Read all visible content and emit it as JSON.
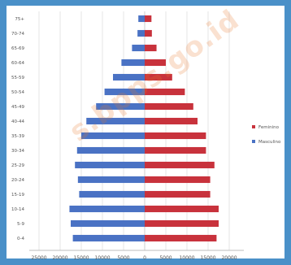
{
  "chart_data": {
    "type": "bar",
    "orientation": "horizontal-population-pyramid",
    "categories": [
      "0-4",
      "5-9",
      "10-14",
      "15-19",
      "20-24",
      "25-29",
      "30-34",
      "35-39",
      "40-44",
      "45-49",
      "50-54",
      "55-59",
      "60-64",
      "65-69",
      "70-74",
      "75+"
    ],
    "series": [
      {
        "name": "Masculino",
        "color": "#4a72c4",
        "side": "left",
        "values": [
          17000,
          17500,
          17800,
          15500,
          15800,
          16500,
          16000,
          15000,
          13800,
          11500,
          9500,
          7500,
          5500,
          3000,
          1700,
          1500
        ]
      },
      {
        "name": "Feminino",
        "color": "#c8323c",
        "side": "right",
        "values": [
          17000,
          17500,
          17500,
          15500,
          15500,
          16500,
          14500,
          14500,
          12500,
          11500,
          9500,
          6500,
          5000,
          2800,
          1700,
          1600
        ]
      }
    ],
    "xlim": [
      -25000,
      25000
    ],
    "x_ticks": [
      "25000",
      "20000",
      "15000",
      "10000",
      "5000",
      "0",
      "5000",
      "10000",
      "15000",
      "20000"
    ],
    "x_tick_values": [
      -25000,
      -20000,
      -15000,
      -10000,
      -5000,
      0,
      5000,
      10000,
      15000,
      20000
    ],
    "grid": true,
    "legend_position": "right"
  },
  "legend": {
    "items": [
      {
        "label": "Feminino",
        "color": "#c8323c"
      },
      {
        "label": "Masculino",
        "color": "#4a72c4"
      }
    ]
  },
  "watermark": "s.bpps.go.id"
}
